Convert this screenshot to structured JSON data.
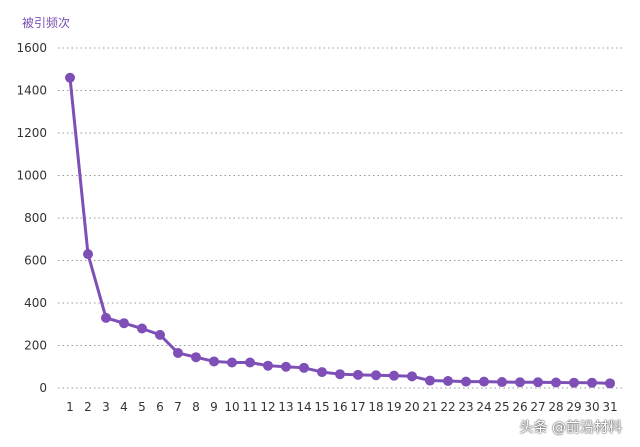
{
  "chart_data": {
    "type": "line",
    "ylabel": "被引频次",
    "xlabel": "",
    "y_ticks": [
      "1600",
      "1400",
      "1200",
      "1000",
      "800",
      "600",
      "400",
      "200",
      "0"
    ],
    "ylim": [
      0,
      1600
    ],
    "grid": "horizontal dotted",
    "x": [
      1,
      2,
      3,
      4,
      5,
      6,
      7,
      8,
      9,
      10,
      11,
      12,
      13,
      14,
      15,
      16,
      17,
      18,
      19,
      20,
      21,
      22,
      23,
      24,
      25,
      26,
      27,
      28,
      29,
      30,
      31
    ],
    "x_tick_labels": [
      "1",
      "2",
      "3",
      "4",
      "5",
      "6",
      "7",
      "8",
      "9",
      "10",
      "11",
      "12",
      "13",
      "14",
      "15",
      "16",
      "17",
      "18",
      "19",
      "20",
      "21",
      "22",
      "23",
      "24",
      "25",
      "26",
      "27",
      "28",
      "29",
      "30",
      "31"
    ],
    "series": [
      {
        "values": [
          1460,
          630,
          330,
          305,
          280,
          250,
          165,
          145,
          125,
          120,
          120,
          105,
          100,
          95,
          75,
          65,
          62,
          60,
          58,
          55,
          35,
          33,
          30,
          30,
          28,
          27,
          27,
          26,
          25,
          25,
          22
        ],
        "color": "#7e4fb6"
      }
    ]
  },
  "watermark": "头条 @前沿材料"
}
